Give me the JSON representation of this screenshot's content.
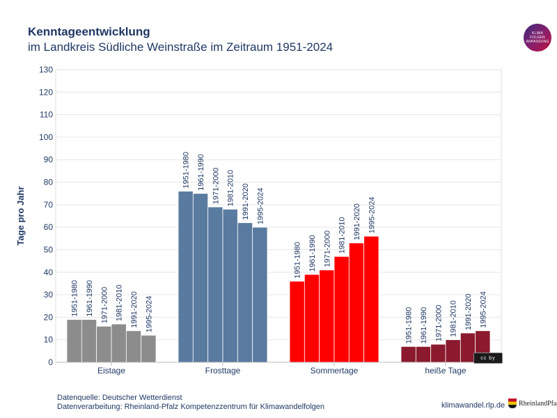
{
  "header": {
    "title": "Kenntageentwicklung",
    "subtitle": "im Landkreis Südliche Weinstraße im Zeitraum 1951-2024"
  },
  "logo": {
    "line1": "KLIMA",
    "line2": "FOLGEN",
    "line3": "ANPASSUNG"
  },
  "chart_data": {
    "type": "bar",
    "title": "Kenntageentwicklung",
    "subtitle": "im Landkreis Südliche Weinstraße im Zeitraum 1951-2024",
    "ylabel": "Tage pro Jahr",
    "xlabel": "",
    "ylim": [
      0,
      130
    ],
    "yticks": [
      0,
      10,
      20,
      30,
      40,
      50,
      60,
      70,
      80,
      90,
      100,
      110,
      120,
      130
    ],
    "grid": true,
    "periods": [
      "1951-1980",
      "1961-1990",
      "1971-2000",
      "1981-2010",
      "1991-2020",
      "1995-2024"
    ],
    "groups": [
      {
        "name": "Eistage",
        "color": "#8c8c8c",
        "values": [
          19,
          19,
          16,
          17,
          14,
          12
        ]
      },
      {
        "name": "Frosttage",
        "color": "#5a7ba0",
        "values": [
          76,
          75,
          69,
          68,
          62,
          60
        ]
      },
      {
        "name": "Sommertage",
        "color": "#ff0000",
        "values": [
          36,
          39,
          41,
          47,
          53,
          56
        ]
      },
      {
        "name": "heiße Tage",
        "color": "#8b1a2e",
        "values": [
          7,
          7,
          8,
          10,
          13,
          14
        ]
      }
    ]
  },
  "footer": {
    "source": "Datenquelle: Deutscher Wetterdienst",
    "processing": "Datenverarbeitung: Rheinland-Pfalz Kompetenzzentrum für Klimawandelfolgen",
    "website": "klimawandel.rlp.de",
    "state_logo_text": "RheinlandPfalz",
    "license_badge": "cc by"
  }
}
